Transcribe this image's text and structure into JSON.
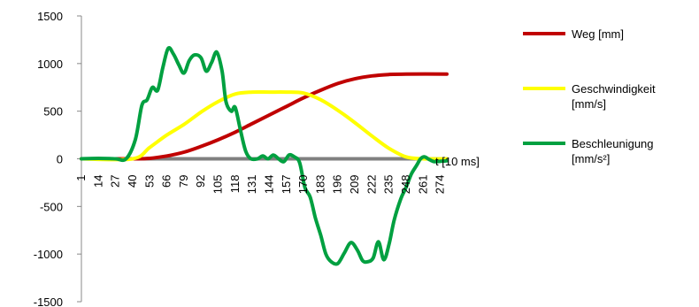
{
  "chart_data": {
    "type": "line",
    "title": "",
    "xlabel": "t [10 ms]",
    "ylabel": "",
    "xlim": [
      1,
      279
    ],
    "ylim": [
      -1500,
      1500
    ],
    "yticks": [
      -1500,
      -1000,
      -500,
      0,
      500,
      1000,
      1500
    ],
    "xtick_labels": [
      "1",
      "14",
      "27",
      "40",
      "53",
      "66",
      "79",
      "92",
      "105",
      "118",
      "131",
      "144",
      "157",
      "170",
      "183",
      "196",
      "209",
      "222",
      "235",
      "248",
      "261",
      "274"
    ],
    "legend_position": "right",
    "series": [
      {
        "name": "Weg [mm]",
        "color": "#c00000",
        "points": [
          [
            1,
            0
          ],
          [
            40,
            0
          ],
          [
            53,
            5
          ],
          [
            66,
            30
          ],
          [
            79,
            70
          ],
          [
            92,
            130
          ],
          [
            105,
            200
          ],
          [
            118,
            280
          ],
          [
            131,
            370
          ],
          [
            144,
            460
          ],
          [
            157,
            550
          ],
          [
            170,
            640
          ],
          [
            183,
            720
          ],
          [
            196,
            790
          ],
          [
            209,
            840
          ],
          [
            222,
            870
          ],
          [
            235,
            885
          ],
          [
            248,
            890
          ],
          [
            279,
            890
          ]
        ]
      },
      {
        "name": "Geschwindigkeit [mm/s]",
        "color": "#ffff00",
        "points": [
          [
            1,
            0
          ],
          [
            40,
            0
          ],
          [
            53,
            120
          ],
          [
            66,
            250
          ],
          [
            79,
            360
          ],
          [
            92,
            490
          ],
          [
            105,
            600
          ],
          [
            118,
            680
          ],
          [
            131,
            700
          ],
          [
            144,
            700
          ],
          [
            157,
            700
          ],
          [
            170,
            690
          ],
          [
            183,
            620
          ],
          [
            196,
            510
          ],
          [
            209,
            380
          ],
          [
            222,
            240
          ],
          [
            235,
            110
          ],
          [
            248,
            20
          ],
          [
            261,
            0
          ],
          [
            279,
            0
          ]
        ]
      },
      {
        "name": "Beschleunigung [mm/s²]",
        "color": "#00a040",
        "points": [
          [
            1,
            0
          ],
          [
            14,
            5
          ],
          [
            27,
            0
          ],
          [
            35,
            0
          ],
          [
            42,
            200
          ],
          [
            47,
            560
          ],
          [
            51,
            620
          ],
          [
            55,
            750
          ],
          [
            59,
            720
          ],
          [
            63,
            960
          ],
          [
            67,
            1160
          ],
          [
            71,
            1100
          ],
          [
            75,
            990
          ],
          [
            79,
            900
          ],
          [
            83,
            1030
          ],
          [
            87,
            1090
          ],
          [
            92,
            1060
          ],
          [
            96,
            920
          ],
          [
            100,
            1010
          ],
          [
            104,
            1120
          ],
          [
            108,
            920
          ],
          [
            111,
            600
          ],
          [
            115,
            500
          ],
          [
            118,
            540
          ],
          [
            122,
            300
          ],
          [
            126,
            80
          ],
          [
            130,
            0
          ],
          [
            135,
            0
          ],
          [
            139,
            30
          ],
          [
            143,
            0
          ],
          [
            147,
            40
          ],
          [
            151,
            0
          ],
          [
            155,
            -30
          ],
          [
            159,
            40
          ],
          [
            163,
            20
          ],
          [
            167,
            -40
          ],
          [
            171,
            -300
          ],
          [
            175,
            -400
          ],
          [
            179,
            -620
          ],
          [
            183,
            -800
          ],
          [
            187,
            -1000
          ],
          [
            191,
            -1080
          ],
          [
            196,
            -1100
          ],
          [
            201,
            -990
          ],
          [
            206,
            -880
          ],
          [
            211,
            -960
          ],
          [
            215,
            -1070
          ],
          [
            219,
            -1080
          ],
          [
            223,
            -1040
          ],
          [
            227,
            -870
          ],
          [
            231,
            -1060
          ],
          [
            235,
            -900
          ],
          [
            239,
            -640
          ],
          [
            244,
            -420
          ],
          [
            248,
            -300
          ],
          [
            252,
            -160
          ],
          [
            256,
            -70
          ],
          [
            259,
            0
          ],
          [
            262,
            20
          ],
          [
            266,
            -10
          ],
          [
            270,
            -30
          ],
          [
            279,
            -20
          ]
        ]
      }
    ]
  }
}
